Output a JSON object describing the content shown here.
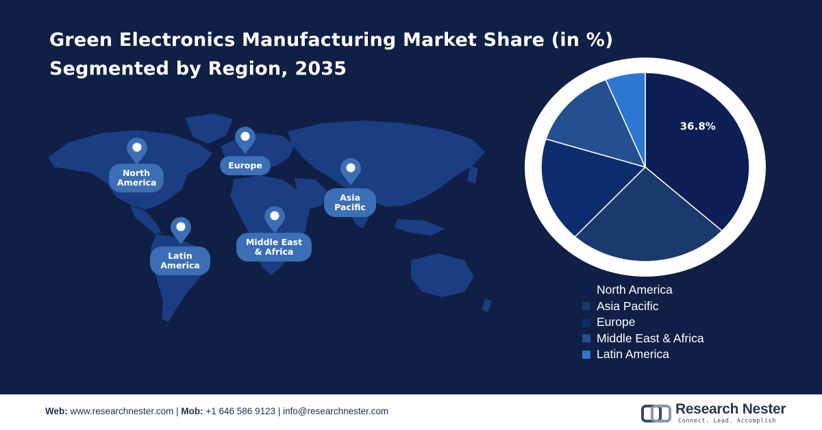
{
  "title": {
    "line1": "Green Electronics Manufacturing Market Share (in %)",
    "line2": "Segmented by Region, 2035"
  },
  "map_labels": [
    {
      "text": "North\nAmerica"
    },
    {
      "text": "Europe"
    },
    {
      "text": "Asia\nPacific"
    },
    {
      "text": "Middle East\n& Africa"
    },
    {
      "text": "Latin\nAmerica"
    }
  ],
  "chart_data": {
    "type": "pie",
    "title": "Green Electronics Manufacturing Market Share (in %) Segmented by Region, 2035",
    "series": [
      {
        "name": "North America",
        "value": 36.8,
        "color": "#0d1f55",
        "label": "36.8%"
      },
      {
        "name": "Asia Pacific",
        "value": 25.0,
        "color": "#1b3a6b",
        "label": ""
      },
      {
        "name": "Europe",
        "value": 18.0,
        "color": "#0e2d6e",
        "label": ""
      },
      {
        "name": "Middle East & Africa",
        "value": 14.0,
        "color": "#24508f",
        "label": ""
      },
      {
        "name": "Latin America",
        "value": 6.2,
        "color": "#2e77d0",
        "label": ""
      }
    ],
    "legend_position": "bottom-right"
  },
  "footer": {
    "web_label": "Web:",
    "web_value": "www.researchnester.com",
    "mob_label": "Mob:",
    "mob_value": "+1 646 586 9123",
    "email": "info@researchnester.com",
    "sep": "|"
  },
  "brand": {
    "name": "Research Nester",
    "tagline": "Connect. Lead. Accomplish"
  }
}
